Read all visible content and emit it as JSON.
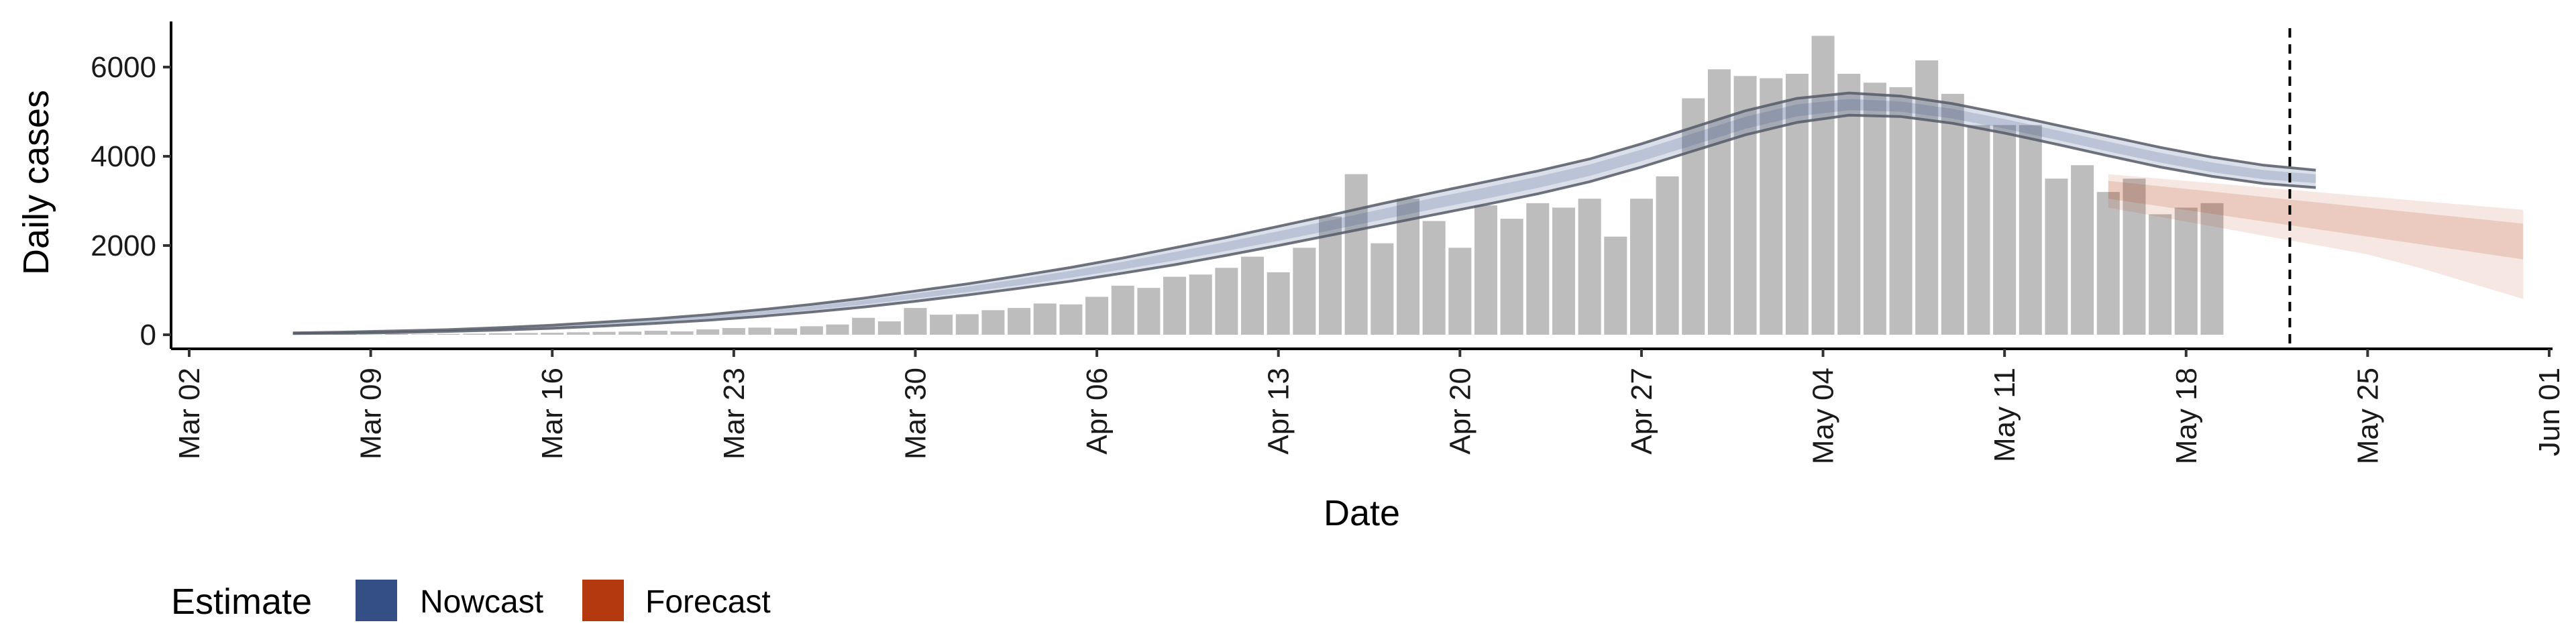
{
  "chart_data": {
    "type": "bar",
    "xlabel": "Date",
    "ylabel": "Daily cases",
    "x_ticks": [
      "Mar 02",
      "Mar 09",
      "Mar 16",
      "Mar 23",
      "Mar 30",
      "Apr 06",
      "Apr 13",
      "Apr 20",
      "Apr 27",
      "May 04",
      "May 11",
      "May 18",
      "May 25",
      "Jun 01"
    ],
    "y_ticks": [
      "0",
      "2000",
      "4000",
      "6000"
    ],
    "ylim": [
      -300,
      7100
    ],
    "xlim": [
      "2020-03-02",
      "2020-06-01"
    ],
    "grid": false,
    "legend": {
      "title": "Estimate",
      "position": "bottom-left",
      "items": [
        {
          "label": "Nowcast",
          "color": "#344e86"
        },
        {
          "label": "Forecast",
          "color": "#b5390f"
        }
      ]
    },
    "vline_date": "2020-05-22",
    "bar_color": "#bdbdbd",
    "bars": {
      "start_date": "2020-03-08",
      "values": [
        10,
        5,
        15,
        10,
        20,
        25,
        35,
        40,
        45,
        55,
        65,
        70,
        90,
        75,
        120,
        150,
        160,
        140,
        190,
        230,
        380,
        300,
        600,
        450,
        460,
        550,
        600,
        700,
        680,
        850,
        1100,
        1050,
        1300,
        1350,
        1500,
        1750,
        1400,
        1950,
        2650,
        3600,
        2050,
        3050,
        2550,
        1950,
        2900,
        2600,
        2950,
        2850,
        3050,
        2200,
        3050,
        3550,
        5300,
        5950,
        5800,
        5750,
        5850,
        6700,
        5850,
        5650,
        5550,
        6150,
        5400,
        4700,
        4700,
        4700,
        3500,
        3800,
        3200,
        3500,
        2700,
        2850,
        2950
      ]
    },
    "nowcast": {
      "color": "#344e86",
      "start_date": "2020-03-06",
      "step_days": 2,
      "upper90": [
        40,
        60,
        85,
        115,
        160,
        215,
        285,
        360,
        450,
        560,
        680,
        820,
        980,
        1140,
        1320,
        1510,
        1720,
        1950,
        2180,
        2430,
        2680,
        2940,
        3190,
        3430,
        3670,
        3940,
        4280,
        4650,
        5020,
        5300,
        5420,
        5350,
        5180,
        4950,
        4700,
        4450,
        4200,
        3980,
        3800,
        3690
      ],
      "median": [
        30,
        45,
        65,
        95,
        130,
        180,
        240,
        310,
        390,
        490,
        600,
        730,
        870,
        1020,
        1180,
        1360,
        1550,
        1760,
        1980,
        2210,
        2450,
        2700,
        2950,
        3180,
        3420,
        3690,
        4020,
        4380,
        4750,
        5030,
        5150,
        5110,
        4950,
        4720,
        4470,
        4210,
        3960,
        3740,
        3580,
        3500
      ],
      "lower90": [
        25,
        35,
        50,
        75,
        105,
        145,
        195,
        255,
        325,
        410,
        510,
        620,
        750,
        890,
        1040,
        1200,
        1380,
        1570,
        1780,
        2000,
        2230,
        2460,
        2690,
        2920,
        3160,
        3430,
        3760,
        4120,
        4480,
        4760,
        4920,
        4890,
        4740,
        4520,
        4270,
        4010,
        3760,
        3550,
        3390,
        3300
      ]
    },
    "forecast": {
      "color": "#b5390f",
      "start_date": "2020-05-15",
      "step_days": 2,
      "upper90": [
        3600,
        3500,
        3400,
        3300,
        3200,
        3100,
        3000,
        2900,
        2800
      ],
      "upper50": [
        3450,
        3330,
        3210,
        3090,
        2970,
        2850,
        2730,
        2610,
        2490
      ],
      "median": [
        3250,
        3100,
        2950,
        2800,
        2650,
        2500,
        2350,
        2200,
        2050
      ],
      "lower50": [
        3050,
        2880,
        2710,
        2540,
        2370,
        2200,
        2030,
        1860,
        1690
      ],
      "lower90": [
        2850,
        2640,
        2430,
        2220,
        2010,
        1800,
        1500,
        1150,
        800
      ]
    }
  }
}
